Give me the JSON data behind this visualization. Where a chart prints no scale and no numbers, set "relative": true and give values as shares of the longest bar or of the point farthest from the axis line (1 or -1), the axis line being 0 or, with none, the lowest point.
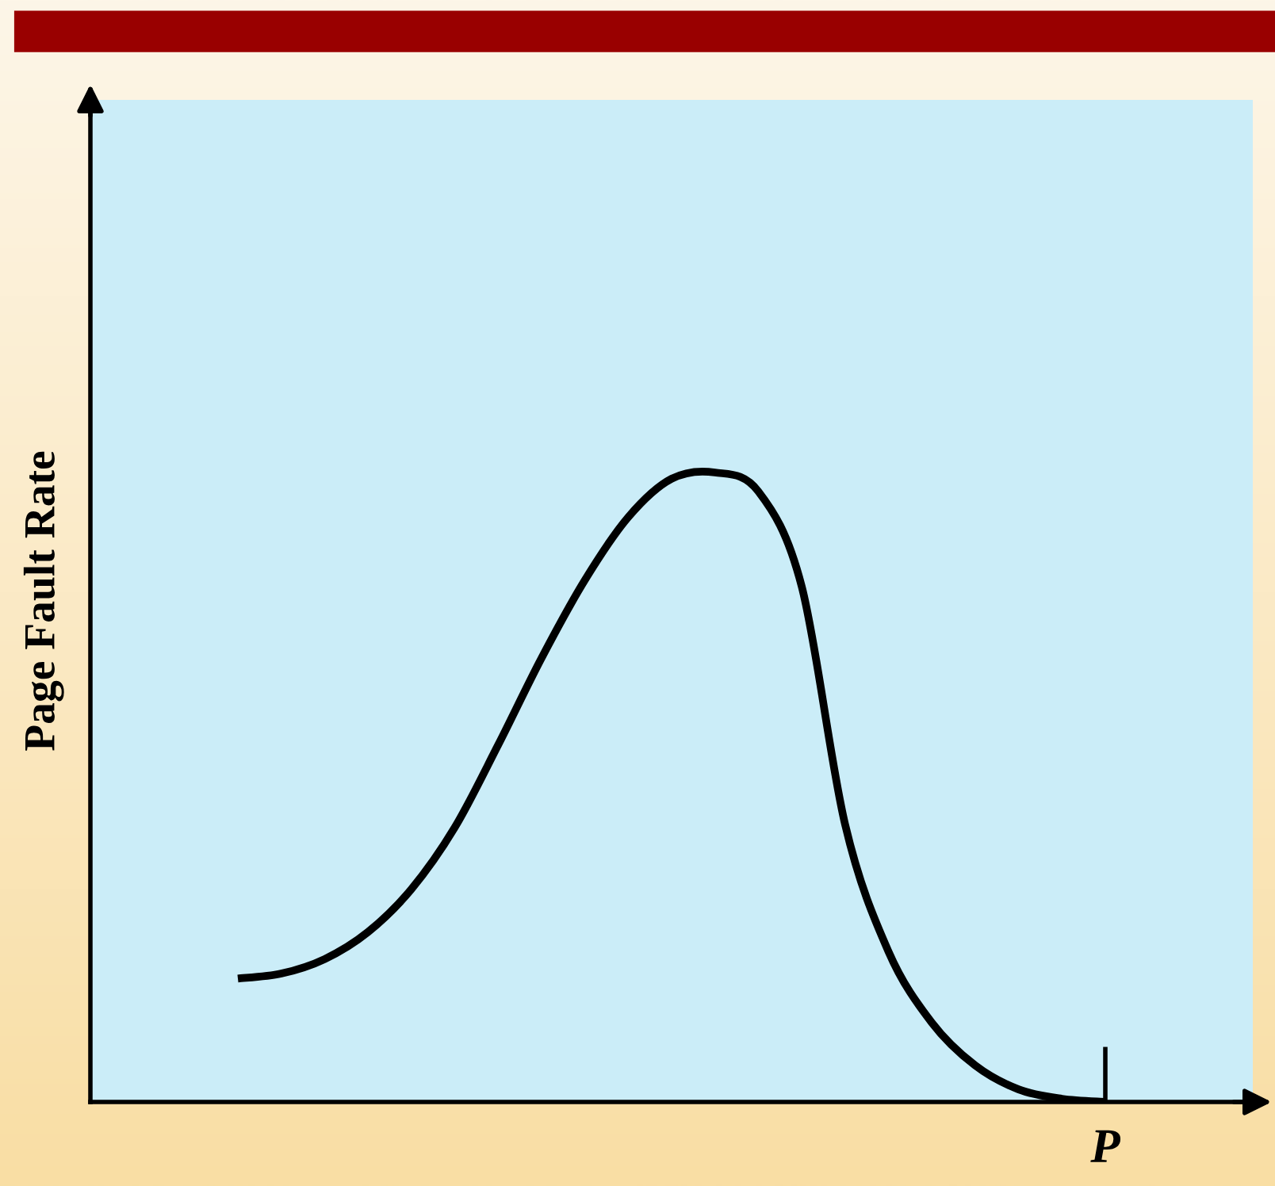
{
  "chart_data": {
    "type": "line",
    "ylabel": "Page Fault Rate",
    "relative": true,
    "categories": [
      null,
      null,
      null,
      null,
      null,
      null,
      null,
      null,
      null,
      null,
      null,
      null,
      null,
      null,
      null,
      null,
      null,
      null,
      null,
      null,
      null
    ],
    "annotations": [
      "P"
    ],
    "series": [
      {
        "color": "#000000",
        "values": [
          0.196,
          0.204,
          0.227,
          0.27,
          0.338,
          0.436,
          0.567,
          0.705,
          0.829,
          0.929,
          0.99,
          1,
          0.97,
          0.819,
          0.441,
          0.239,
          0.126,
          0.058,
          0.02,
          0.005,
          0
        ]
      }
    ],
    "grid": false,
    "legend": false,
    "marker": "none",
    "line_style": "solid"
  }
}
